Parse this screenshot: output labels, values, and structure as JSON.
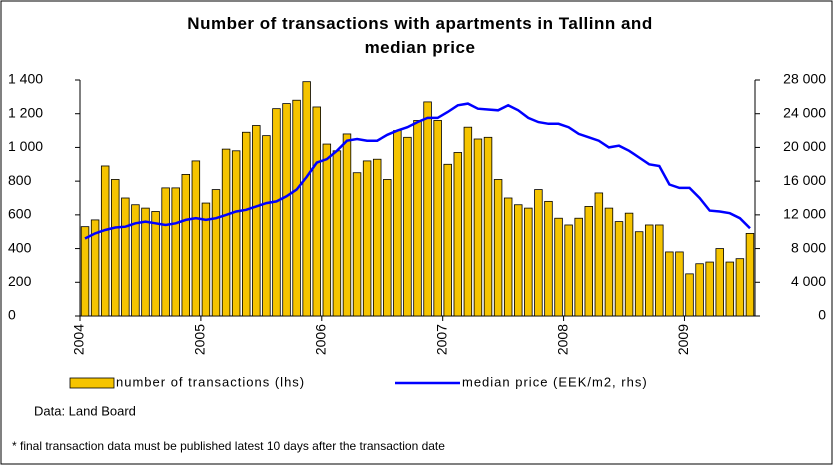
{
  "chart_data": {
    "type": "bar",
    "title": "Number of transactions with apartments in Tallinn and median price",
    "source": "Data: Land Board",
    "footnote": "* final transaction data must be published latest 10 days after the transaction date",
    "categories": [
      "2004",
      null,
      null,
      null,
      null,
      null,
      null,
      null,
      null,
      null,
      null,
      null,
      "2005",
      null,
      null,
      null,
      null,
      null,
      null,
      null,
      null,
      null,
      null,
      null,
      "2006",
      null,
      null,
      null,
      null,
      null,
      null,
      null,
      null,
      null,
      null,
      null,
      "2007",
      null,
      null,
      null,
      null,
      null,
      null,
      null,
      null,
      null,
      null,
      null,
      "2008",
      null,
      null,
      null,
      null,
      null,
      null,
      null,
      null,
      null,
      null,
      null,
      "2009",
      null,
      null,
      null,
      null,
      null,
      null
    ],
    "series": [
      {
        "name": "number of transactions (lhs)",
        "type": "bar",
        "color": "#f5c400",
        "values": [
          530,
          570,
          890,
          810,
          700,
          660,
          640,
          620,
          760,
          760,
          840,
          920,
          670,
          750,
          990,
          980,
          1090,
          1130,
          1070,
          1230,
          1260,
          1280,
          1390,
          1240,
          1020,
          980,
          1080,
          850,
          920,
          930,
          810,
          1100,
          1060,
          1160,
          1270,
          1160,
          900,
          970,
          1120,
          1050,
          1060,
          810,
          700,
          660,
          640,
          750,
          680,
          580,
          540,
          580,
          650,
          730,
          640,
          560,
          610,
          500,
          540,
          540,
          380,
          380,
          250,
          310,
          320,
          400,
          320,
          340,
          490
        ]
      },
      {
        "name": "median price (EEK/m2, rhs)",
        "type": "line",
        "axis": "y2",
        "color": "#0000ff",
        "values": [
          9200,
          9800,
          10200,
          10500,
          10600,
          11000,
          11200,
          11000,
          10800,
          11000,
          11400,
          11600,
          11400,
          11600,
          12000,
          12400,
          12600,
          13000,
          13400,
          13600,
          14200,
          15000,
          16500,
          18200,
          18600,
          19600,
          20800,
          21000,
          20800,
          20800,
          21500,
          22000,
          22400,
          23000,
          23500,
          23500,
          24200,
          25000,
          25200,
          24600,
          24500,
          24400,
          25000,
          24400,
          23500,
          23000,
          22800,
          22800,
          22400,
          21600,
          21200,
          20800,
          20000,
          20200,
          19600,
          18800,
          18000,
          17800,
          15600,
          15200,
          15200,
          14000,
          12500,
          12400,
          12200,
          11600,
          10400
        ]
      }
    ],
    "ylim": [
      0,
      1400
    ],
    "yticks": [
      0,
      200,
      400,
      600,
      800,
      {
        "value": 1000,
        "label": "1 000"
      },
      {
        "value": 1200,
        "label": "1 200"
      },
      {
        "value": 1400,
        "label": "1 400"
      }
    ],
    "y2lim": [
      0,
      28000
    ],
    "y2ticks": [
      0,
      {
        "value": 4000,
        "label": "4 000"
      },
      {
        "value": 8000,
        "label": "8 000"
      },
      {
        "value": 12000,
        "label": "12 000"
      },
      {
        "value": 16000,
        "label": "16 000"
      },
      {
        "value": 20000,
        "label": "20 000"
      },
      {
        "value": 24000,
        "label": "24 000"
      },
      {
        "value": 28000,
        "label": "28 000"
      }
    ],
    "grid": false
  }
}
